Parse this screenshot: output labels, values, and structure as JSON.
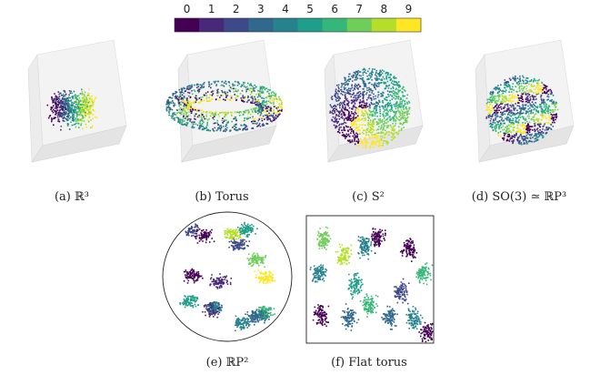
{
  "colorbar": {
    "ticks": [
      "0",
      "1",
      "2",
      "3",
      "4",
      "5",
      "6",
      "7",
      "8",
      "9"
    ],
    "colors": [
      "#440154",
      "#482878",
      "#3e4989",
      "#31688e",
      "#26828e",
      "#1f9e89",
      "#35b779",
      "#6ece58",
      "#b5de2b",
      "#fde725"
    ]
  },
  "panels": [
    {
      "id": "a",
      "caption": "(a) ℝ³",
      "kind": "cube-blob"
    },
    {
      "id": "b",
      "caption": "(b) Torus",
      "kind": "cube-torus"
    },
    {
      "id": "c",
      "caption": "(c) S²",
      "kind": "cube-sphere"
    },
    {
      "id": "d",
      "caption": "(d) SO(3) ≃ ℝP³",
      "kind": "cube-ball"
    },
    {
      "id": "e",
      "caption": "(e) ℝP²",
      "kind": "disk"
    },
    {
      "id": "f",
      "caption": "(f) Flat torus",
      "kind": "square"
    }
  ]
}
